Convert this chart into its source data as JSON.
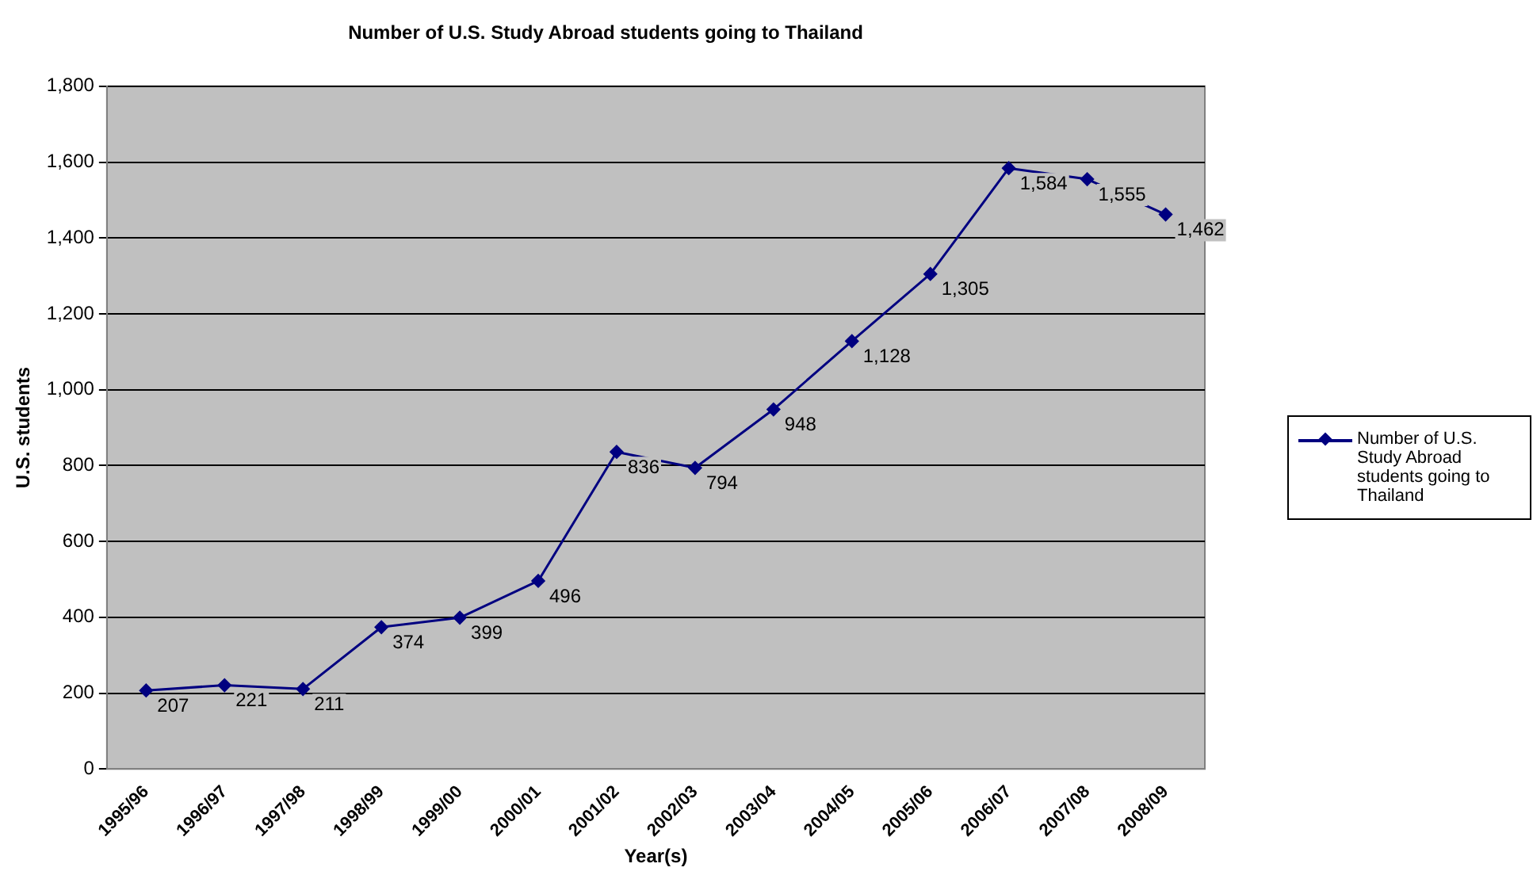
{
  "chart_data": {
    "type": "line",
    "title": "Number of U.S. Study Abroad students going to Thailand",
    "xlabel": "Year(s)",
    "ylabel": "U.S. students",
    "categories": [
      "1995/96",
      "1996/97",
      "1997/98",
      "1998/99",
      "1999/00",
      "2000/01",
      "2001/02",
      "2002/03",
      "2003/04",
      "2004/05",
      "2005/06",
      "2006/07",
      "2007/08",
      "2008/09"
    ],
    "series": [
      {
        "name": "Number of U.S. Study Abroad students going to Thailand",
        "color": "#000080",
        "values": [
          207,
          221,
          211,
          374,
          399,
          496,
          836,
          794,
          948,
          1128,
          1305,
          1584,
          1555,
          1462
        ],
        "value_labels": [
          "207",
          "221",
          "211",
          "374",
          "399",
          "496",
          "836",
          "794",
          "948",
          "1,128",
          "1,305",
          "1,584",
          "1,555",
          "1,462"
        ]
      }
    ],
    "ylim": [
      0,
      1800
    ],
    "yticks": [
      {
        "value": 0,
        "label": "0"
      },
      {
        "value": 200,
        "label": "200"
      },
      {
        "value": 400,
        "label": "400"
      },
      {
        "value": 600,
        "label": "600"
      },
      {
        "value": 800,
        "label": "800"
      },
      {
        "value": 1000,
        "label": "1,000"
      },
      {
        "value": 1200,
        "label": "1,200"
      },
      {
        "value": 1400,
        "label": "1,400"
      },
      {
        "value": 1600,
        "label": "1,600"
      },
      {
        "value": 1800,
        "label": "1,800"
      }
    ],
    "grid": "y",
    "legend": "right",
    "marker": "diamond",
    "line_style": "solid"
  }
}
